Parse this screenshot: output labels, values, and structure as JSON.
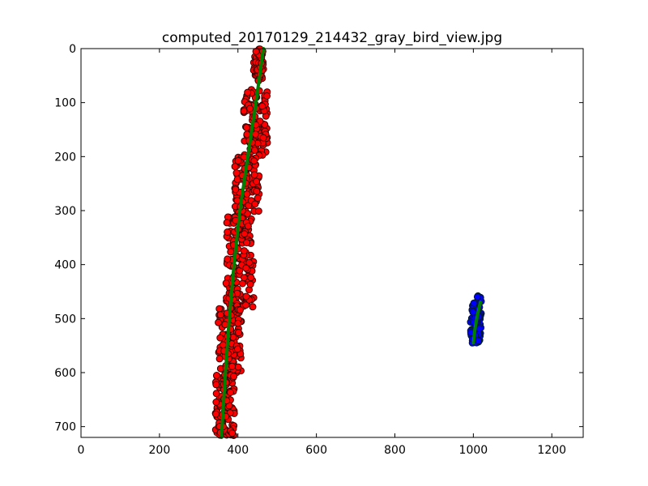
{
  "chart_data": {
    "type": "scatter",
    "title": "computed_20170129_214432_gray_bird_view.jpg",
    "xlabel": "",
    "ylabel": "",
    "xlim": [
      0,
      1280
    ],
    "ylim": [
      720,
      0
    ],
    "y_inverted": true,
    "grid": false,
    "x_ticks": [
      0,
      200,
      400,
      600,
      800,
      1000,
      1200
    ],
    "y_ticks": [
      0,
      100,
      200,
      300,
      400,
      500,
      600,
      700
    ],
    "colors": {
      "left_points": "#ff0000",
      "left_edge": "#3a0000",
      "right_points": "#0000ff",
      "right_edge": "#001a33",
      "fit": "#008000"
    },
    "series": [
      {
        "kind": "scatter",
        "color": "#ff0000",
        "clusters": [
          {
            "y": [
              0,
              60
            ],
            "x": [
              440,
              465
            ]
          },
          {
            "y": [
              75,
              200
            ],
            "x": [
              415,
              475
            ]
          },
          {
            "y": [
              200,
              310
            ],
            "x": [
              392,
              455
            ]
          },
          {
            "y": [
              310,
              480
            ],
            "x": [
              370,
              440
            ]
          },
          {
            "y": [
              480,
              600
            ],
            "x": [
              350,
              410
            ]
          },
          {
            "y": [
              600,
              720
            ],
            "x": [
              343,
              392
            ]
          }
        ]
      },
      {
        "kind": "scatter",
        "color": "#0000ff",
        "clusters": [
          {
            "y": [
              458,
              470
            ],
            "x": [
              1010,
              1020
            ]
          },
          {
            "y": [
              470,
              545
            ],
            "x": [
              993,
              1020
            ]
          }
        ]
      },
      {
        "kind": "line",
        "color": "#008000",
        "x": [
          465,
          446,
          425,
          405,
          390,
          378,
          368,
          358
        ],
        "y": [
          0,
          100,
          200,
          300,
          400,
          500,
          600,
          720
        ]
      },
      {
        "kind": "line",
        "color": "#008000",
        "x": [
          1018,
          1010,
          1004,
          1000
        ],
        "y": [
          470,
          495,
          520,
          545
        ]
      }
    ]
  }
}
